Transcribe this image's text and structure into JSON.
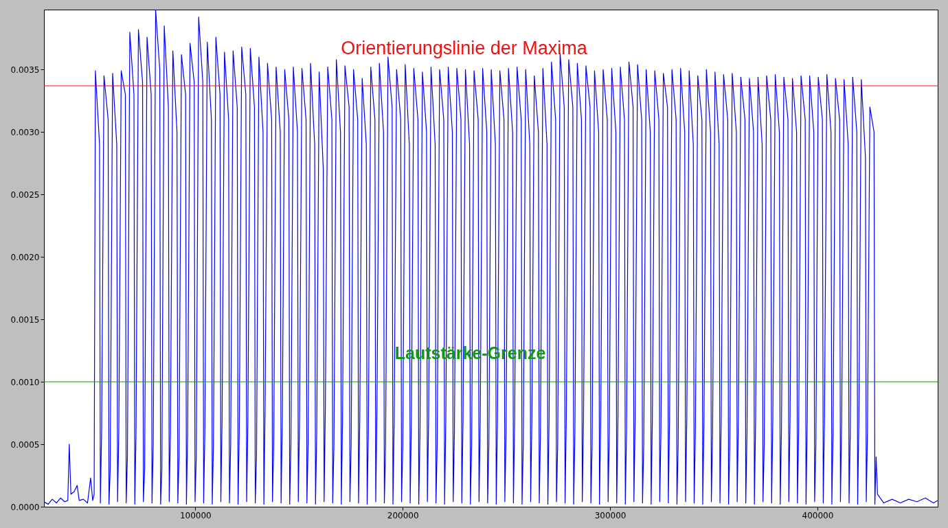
{
  "chart_data": {
    "type": "line",
    "series": [
      {
        "color": "#0000ff",
        "x": [
          27000,
          29000,
          31000,
          33000,
          35000,
          37000,
          38500,
          39200,
          40000,
          41500,
          43000,
          44000,
          46000,
          48000,
          49500,
          50500,
          51200,
          51800,
          53800,
          54200,
          54800,
          55950,
          57950,
          58350,
          58950,
          60100,
          62100,
          62500,
          63100,
          64250,
          66250,
          66650,
          67250,
          68400,
          70400,
          70800,
          71400,
          72550,
          74550,
          74950,
          75550,
          76700,
          78700,
          79100,
          79700,
          80850,
          82850,
          83250,
          83850,
          85000,
          87000,
          87400,
          88000,
          89150,
          91150,
          91550,
          92150,
          93300,
          95300,
          95700,
          96300,
          97450,
          99450,
          99850,
          100450,
          101600,
          103600,
          104000,
          104600,
          105750,
          107750,
          108150,
          108750,
          109900,
          111900,
          112300,
          112900,
          114050,
          116050,
          116450,
          117050,
          118200,
          120200,
          120600,
          121200,
          122350,
          124350,
          124750,
          125350,
          126500,
          128500,
          128900,
          129500,
          130650,
          132650,
          133050,
          133650,
          134800,
          136800,
          137200,
          137800,
          138950,
          140950,
          141350,
          141950,
          143100,
          145100,
          145500,
          146100,
          147250,
          149250,
          149650,
          150250,
          151400,
          153400,
          153800,
          154400,
          155550,
          157550,
          157950,
          158550,
          159700,
          161700,
          162100,
          162700,
          163850,
          165850,
          166250,
          166850,
          168000,
          170000,
          170400,
          171000,
          172150,
          174150,
          174550,
          175150,
          176300,
          178300,
          178700,
          179300,
          180450,
          182450,
          182850,
          183450,
          184600,
          186600,
          187000,
          187600,
          188750,
          190750,
          191150,
          191750,
          192900,
          194900,
          195300,
          195900,
          197050,
          199050,
          199450,
          200050,
          201200,
          203200,
          203600,
          204200,
          205350,
          207350,
          207750,
          208350,
          209500,
          211500,
          211900,
          212500,
          213650,
          215650,
          216050,
          216650,
          217800,
          219800,
          220200,
          220800,
          221950,
          223950,
          224350,
          224950,
          226100,
          228100,
          228500,
          229100,
          230250,
          232250,
          232650,
          233250,
          234400,
          236400,
          236800,
          237400,
          238550,
          240550,
          240950,
          241550,
          242700,
          244700,
          245100,
          245700,
          246850,
          248850,
          249250,
          249850,
          251000,
          253000,
          253400,
          254000,
          255150,
          257150,
          257550,
          258150,
          259300,
          261300,
          261700,
          262300,
          263450,
          265450,
          265850,
          266450,
          267600,
          269600,
          270000,
          270600,
          271750,
          273750,
          274150,
          274750,
          275900,
          277900,
          278300,
          278900,
          280050,
          282050,
          282450,
          283050,
          284200,
          286200,
          286600,
          287200,
          288350,
          290350,
          290750,
          291350,
          292500,
          294500,
          294900,
          295500,
          296650,
          298650,
          299050,
          299650,
          300800,
          302800,
          303200,
          303800,
          304950,
          306950,
          307350,
          307950,
          309100,
          311100,
          311500,
          312100,
          313250,
          315250,
          315650,
          316250,
          317400,
          319400,
          319800,
          320400,
          321550,
          323550,
          323950,
          324550,
          325700,
          327700,
          328100,
          328700,
          329850,
          331850,
          332250,
          332850,
          334000,
          336000,
          336400,
          337000,
          338150,
          340150,
          340550,
          341150,
          342300,
          344300,
          344700,
          345300,
          346450,
          348450,
          348850,
          349450,
          350600,
          352600,
          353000,
          353600,
          354750,
          356750,
          357150,
          357750,
          358900,
          360900,
          361300,
          361900,
          363050,
          365050,
          365450,
          366050,
          367200,
          369200,
          369600,
          370200,
          371350,
          373350,
          373750,
          374350,
          375500,
          377500,
          377900,
          378500,
          379650,
          381650,
          382050,
          382650,
          383800,
          385800,
          386200,
          386800,
          387950,
          389950,
          390350,
          390950,
          392100,
          394100,
          394500,
          395100,
          396250,
          398250,
          398650,
          399250,
          400400,
          402400,
          402800,
          403400,
          404550,
          406550,
          406950,
          407550,
          408700,
          410700,
          411100,
          411700,
          412850,
          414850,
          415250,
          415850,
          417000,
          419000,
          419400,
          420000,
          421150,
          423150,
          423550,
          424150,
          425300,
          427300,
          427700,
          428300,
          429000,
          432000,
          436000,
          440000,
          444000,
          448000,
          452000,
          456000,
          458000
        ],
        "values": [
          4e-05,
          2e-05,
          6e-05,
          3e-05,
          7e-05,
          4e-05,
          5e-05,
          0.0005,
          0.0001,
          0.00012,
          0.00017,
          5e-05,
          6e-05,
          3e-05,
          0.00023,
          5e-05,
          0.0001,
          0.00349,
          0.0029,
          3e-05,
          0.0006,
          0.00345,
          0.0031,
          2e-05,
          0.0003,
          0.00347,
          0.0029,
          4e-05,
          0.0006,
          0.00349,
          0.0033,
          3e-05,
          0.0004,
          0.0038,
          0.0033,
          2e-05,
          0.0006,
          0.00382,
          0.0034,
          4e-05,
          0.0003,
          0.00376,
          0.0033,
          3e-05,
          0.0005,
          0.00398,
          0.0035,
          2e-05,
          0.0003,
          0.00385,
          0.0032,
          4e-05,
          0.0006,
          0.00365,
          0.003,
          3e-05,
          0.0004,
          0.00362,
          0.0033,
          2e-05,
          0.0006,
          0.00371,
          0.0034,
          4e-05,
          0.0004,
          0.00392,
          0.0034,
          3e-05,
          0.0006,
          0.00372,
          0.0031,
          2e-05,
          0.0005,
          0.00376,
          0.0033,
          4e-05,
          0.0007,
          0.00364,
          0.0031,
          3e-05,
          0.0005,
          0.00365,
          0.0032,
          2e-05,
          0.0006,
          0.00368,
          0.0033,
          4e-05,
          0.0007,
          0.00367,
          0.0032,
          3e-05,
          0.0004,
          0.0036,
          0.003,
          2e-05,
          0.0008,
          0.00355,
          0.0031,
          4e-05,
          0.0005,
          0.00352,
          0.003,
          3e-05,
          0.0007,
          0.0035,
          0.0031,
          2e-05,
          0.0005,
          0.00352,
          0.003,
          4e-05,
          0.0007,
          0.00351,
          0.0031,
          3e-05,
          0.0005,
          0.00355,
          0.0029,
          2e-05,
          0.0006,
          0.00348,
          0.0027,
          4e-05,
          0.0008,
          0.00352,
          0.0031,
          3e-05,
          0.0005,
          0.00358,
          0.003,
          2e-05,
          0.0007,
          0.00353,
          0.0032,
          4e-05,
          0.0005,
          0.0035,
          0.0031,
          3e-05,
          0.0007,
          0.00343,
          0.0029,
          2e-05,
          0.0006,
          0.00352,
          0.0031,
          4e-05,
          0.0008,
          0.00355,
          0.003,
          3e-05,
          0.0005,
          0.0036,
          0.0032,
          2e-05,
          0.0007,
          0.0035,
          0.0031,
          4e-05,
          0.0005,
          0.00354,
          0.0029,
          3e-05,
          0.0007,
          0.00351,
          0.0031,
          2e-05,
          0.0006,
          0.00348,
          0.003,
          4e-05,
          0.0007,
          0.00352,
          0.0029,
          3e-05,
          0.0005,
          0.0035,
          0.0031,
          2e-05,
          0.0007,
          0.00352,
          0.003,
          4e-05,
          0.0006,
          0.00351,
          0.0031,
          3e-05,
          0.0007,
          0.0035,
          0.0029,
          2e-05,
          0.0005,
          0.00349,
          0.0031,
          4e-05,
          0.0007,
          0.00351,
          0.003,
          3e-05,
          0.0005,
          0.0035,
          0.0029,
          2e-05,
          0.0007,
          0.00349,
          0.0031,
          4e-05,
          0.0006,
          0.00351,
          0.003,
          3e-05,
          0.0007,
          0.00352,
          0.0031,
          2e-05,
          0.0005,
          0.0035,
          0.0029,
          4e-05,
          0.0007,
          0.00345,
          0.003,
          3e-05,
          0.0006,
          0.00351,
          0.0029,
          2e-05,
          0.0007,
          0.00356,
          0.0031,
          4e-05,
          0.0005,
          0.00363,
          0.0032,
          3e-05,
          0.0007,
          0.00358,
          0.0032,
          2e-05,
          0.0006,
          0.00355,
          0.0031,
          4e-05,
          0.0007,
          0.00353,
          0.0032,
          3e-05,
          0.0005,
          0.00349,
          0.003,
          2e-05,
          0.0007,
          0.0035,
          0.0031,
          4e-05,
          0.0006,
          0.00351,
          0.003,
          3e-05,
          0.0007,
          0.00352,
          0.0031,
          2e-05,
          0.0006,
          0.00356,
          0.0032,
          4e-05,
          0.0007,
          0.00354,
          0.0031,
          3e-05,
          0.0005,
          0.0035,
          0.003,
          2e-05,
          0.0007,
          0.00349,
          0.0031,
          4e-05,
          0.0006,
          0.00347,
          0.0032,
          3e-05,
          0.0007,
          0.0035,
          0.0031,
          2e-05,
          0.0005,
          0.00351,
          0.003,
          4e-05,
          0.0007,
          0.00349,
          0.0029,
          3e-05,
          0.0006,
          0.00345,
          0.0031,
          2e-05,
          0.0007,
          0.0035,
          0.003,
          4e-05,
          0.0006,
          0.00348,
          0.0029,
          3e-05,
          0.0007,
          0.00346,
          0.0031,
          2e-05,
          0.0005,
          0.00347,
          0.003,
          4e-05,
          0.0007,
          0.00344,
          0.0031,
          3e-05,
          0.0006,
          0.00343,
          0.003,
          2e-05,
          0.0007,
          0.00344,
          0.0029,
          4e-05,
          0.0005,
          0.00345,
          0.0031,
          3e-05,
          0.0007,
          0.00346,
          0.003,
          2e-05,
          0.0006,
          0.00344,
          0.0031,
          4e-05,
          0.0007,
          0.00343,
          0.003,
          3e-05,
          0.0006,
          0.00345,
          0.0031,
          2e-05,
          0.0007,
          0.00345,
          0.003,
          4e-05,
          0.0005,
          0.00344,
          0.0031,
          3e-05,
          0.0007,
          0.00346,
          0.003,
          2e-05,
          0.0006,
          0.00343,
          0.0031,
          4e-05,
          0.0007,
          0.00342,
          0.0029,
          3e-05,
          0.0006,
          0.00344,
          0.003,
          2e-05,
          0.0007,
          0.00342,
          0.0028,
          4e-05,
          0.0006,
          0.0032,
          0.003,
          2e-05,
          0.0004,
          0.0001,
          3e-05,
          6e-05,
          3e-05,
          6e-05,
          4e-05,
          7e-05,
          3e-05,
          5e-05
        ]
      }
    ],
    "xlim": [
      27000,
      458000
    ],
    "xticks": [
      100000,
      200000,
      300000,
      400000
    ],
    "ylim": [
      0,
      0.00398
    ],
    "yticks": [
      {
        "value": 0,
        "label": "0.0000"
      },
      0.0005,
      {
        "value": 0.001,
        "label": "0.0010"
      },
      0.0015,
      {
        "value": 0.002,
        "label": "0.0020"
      },
      0.0025,
      {
        "value": 0.003,
        "label": "0.0030"
      },
      0.0035
    ],
    "ref_lines": [
      {
        "axis": "y",
        "value": 0.00337,
        "label": "Orientierungslinie der Maxima",
        "color": "#ee1111"
      },
      {
        "axis": "y",
        "value": 0.001,
        "label": "Lautstärke-Grenze",
        "color": "#119911"
      }
    ],
    "grid": false
  }
}
